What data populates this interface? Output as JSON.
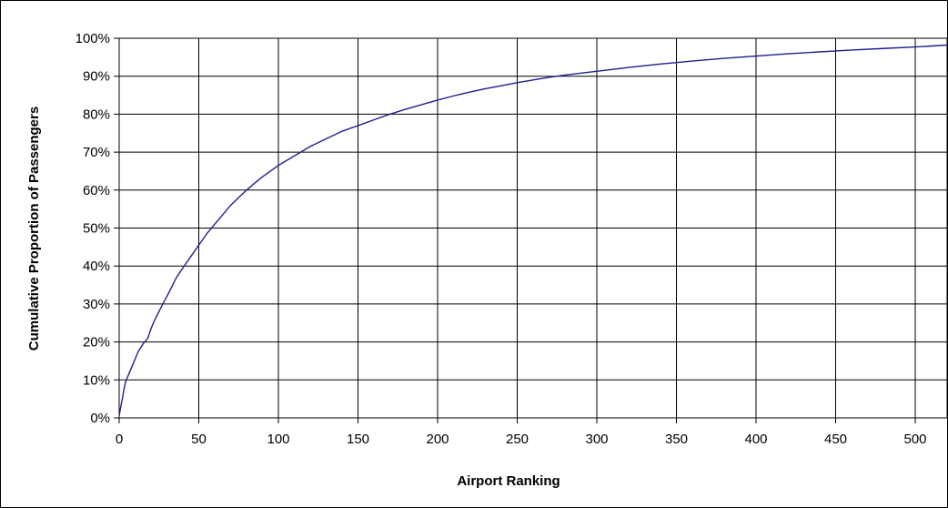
{
  "chart_data": {
    "type": "line",
    "title": "",
    "xlabel": "Airport Ranking",
    "ylabel": "Cumulative Proportion of Passengers",
    "xlim": [
      0,
      520
    ],
    "ylim": [
      0,
      100
    ],
    "grid": true,
    "legend": "none",
    "line_color": "#1f1f8f",
    "x_ticks": [
      "0",
      "50",
      "100",
      "150",
      "200",
      "250",
      "300",
      "350",
      "400",
      "450",
      "500"
    ],
    "y_ticks": [
      "0%",
      "10%",
      "20%",
      "30%",
      "40%",
      "50%",
      "60%",
      "70%",
      "80%",
      "90%",
      "100%"
    ],
    "series": [
      {
        "x": [
          0,
          1,
          2,
          3,
          4,
          5,
          6,
          8,
          10,
          12,
          15,
          18,
          20,
          22,
          25,
          28,
          30,
          33,
          36,
          40,
          45,
          50,
          55,
          60,
          65,
          70,
          75,
          80,
          85,
          90,
          95,
          100,
          110,
          120,
          130,
          140,
          150,
          160,
          170,
          180,
          190,
          200,
          210,
          220,
          230,
          240,
          250,
          260,
          270,
          280,
          290,
          300,
          320,
          340,
          360,
          380,
          400,
          420,
          440,
          460,
          480,
          500,
          520
        ],
        "y": [
          0.5,
          3,
          5,
          7.5,
          9.5,
          10.5,
          11.5,
          13.5,
          15.5,
          17.5,
          19.5,
          21,
          23.5,
          25.5,
          28,
          30.5,
          32,
          34.5,
          37,
          39.5,
          42.5,
          45.5,
          48.5,
          51,
          53.5,
          56,
          58,
          60,
          61.8,
          63.5,
          65,
          66.5,
          69,
          71.5,
          73.5,
          75.5,
          77,
          78.5,
          80,
          81.3,
          82.5,
          83.7,
          84.8,
          85.8,
          86.7,
          87.5,
          88.3,
          89,
          89.7,
          90.3,
          90.8,
          91.3,
          92.3,
          93.2,
          94,
          94.7,
          95.3,
          95.9,
          96.4,
          96.9,
          97.3,
          97.7,
          98.2
        ]
      }
    ]
  }
}
